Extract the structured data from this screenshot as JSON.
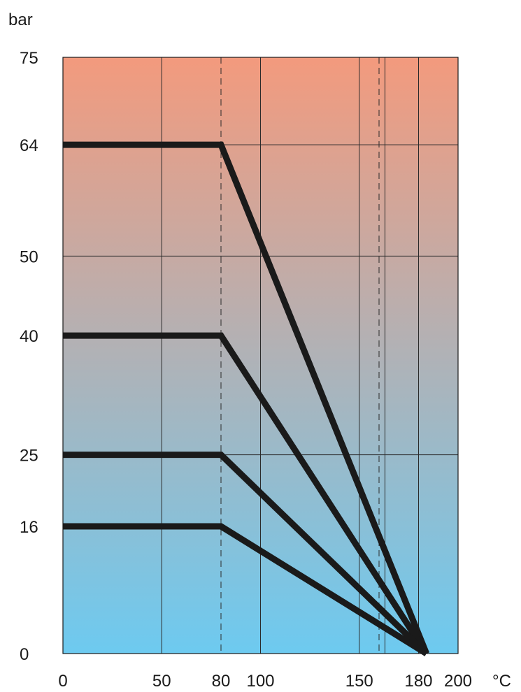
{
  "chart_data": {
    "type": "line",
    "title": "",
    "xlabel": "°C",
    "ylabel": "bar",
    "xlim": [
      0,
      200
    ],
    "ylim": [
      0,
      75
    ],
    "x_ticks": [
      0,
      50,
      80,
      100,
      150,
      180,
      200
    ],
    "x_tick_labels": [
      "0",
      "50",
      "80",
      "100",
      "150",
      "180",
      "200"
    ],
    "y_ticks": [
      0,
      16,
      25,
      40,
      50,
      64,
      75
    ],
    "y_tick_labels": [
      "0",
      "16",
      "25",
      "40",
      "50",
      "64",
      "75"
    ],
    "grid": true,
    "x_gridlines_solid": [
      50,
      100,
      150,
      163,
      180
    ],
    "x_gridlines_dashed": [
      80,
      160
    ],
    "y_gridlines": [
      25,
      50,
      64
    ],
    "background_gradient": {
      "top": "#f39a7d",
      "bottom": "#6dcaf0"
    },
    "line_color": "#1a1a1a",
    "series": [
      {
        "x": [
          0,
          80,
          184
        ],
        "y": [
          64,
          64,
          0
        ]
      },
      {
        "x": [
          0,
          80,
          184
        ],
        "y": [
          40,
          40,
          0
        ]
      },
      {
        "x": [
          0,
          80,
          184
        ],
        "y": [
          25,
          25,
          0
        ]
      },
      {
        "x": [
          0,
          80,
          184
        ],
        "y": [
          16,
          16,
          0
        ]
      }
    ]
  }
}
